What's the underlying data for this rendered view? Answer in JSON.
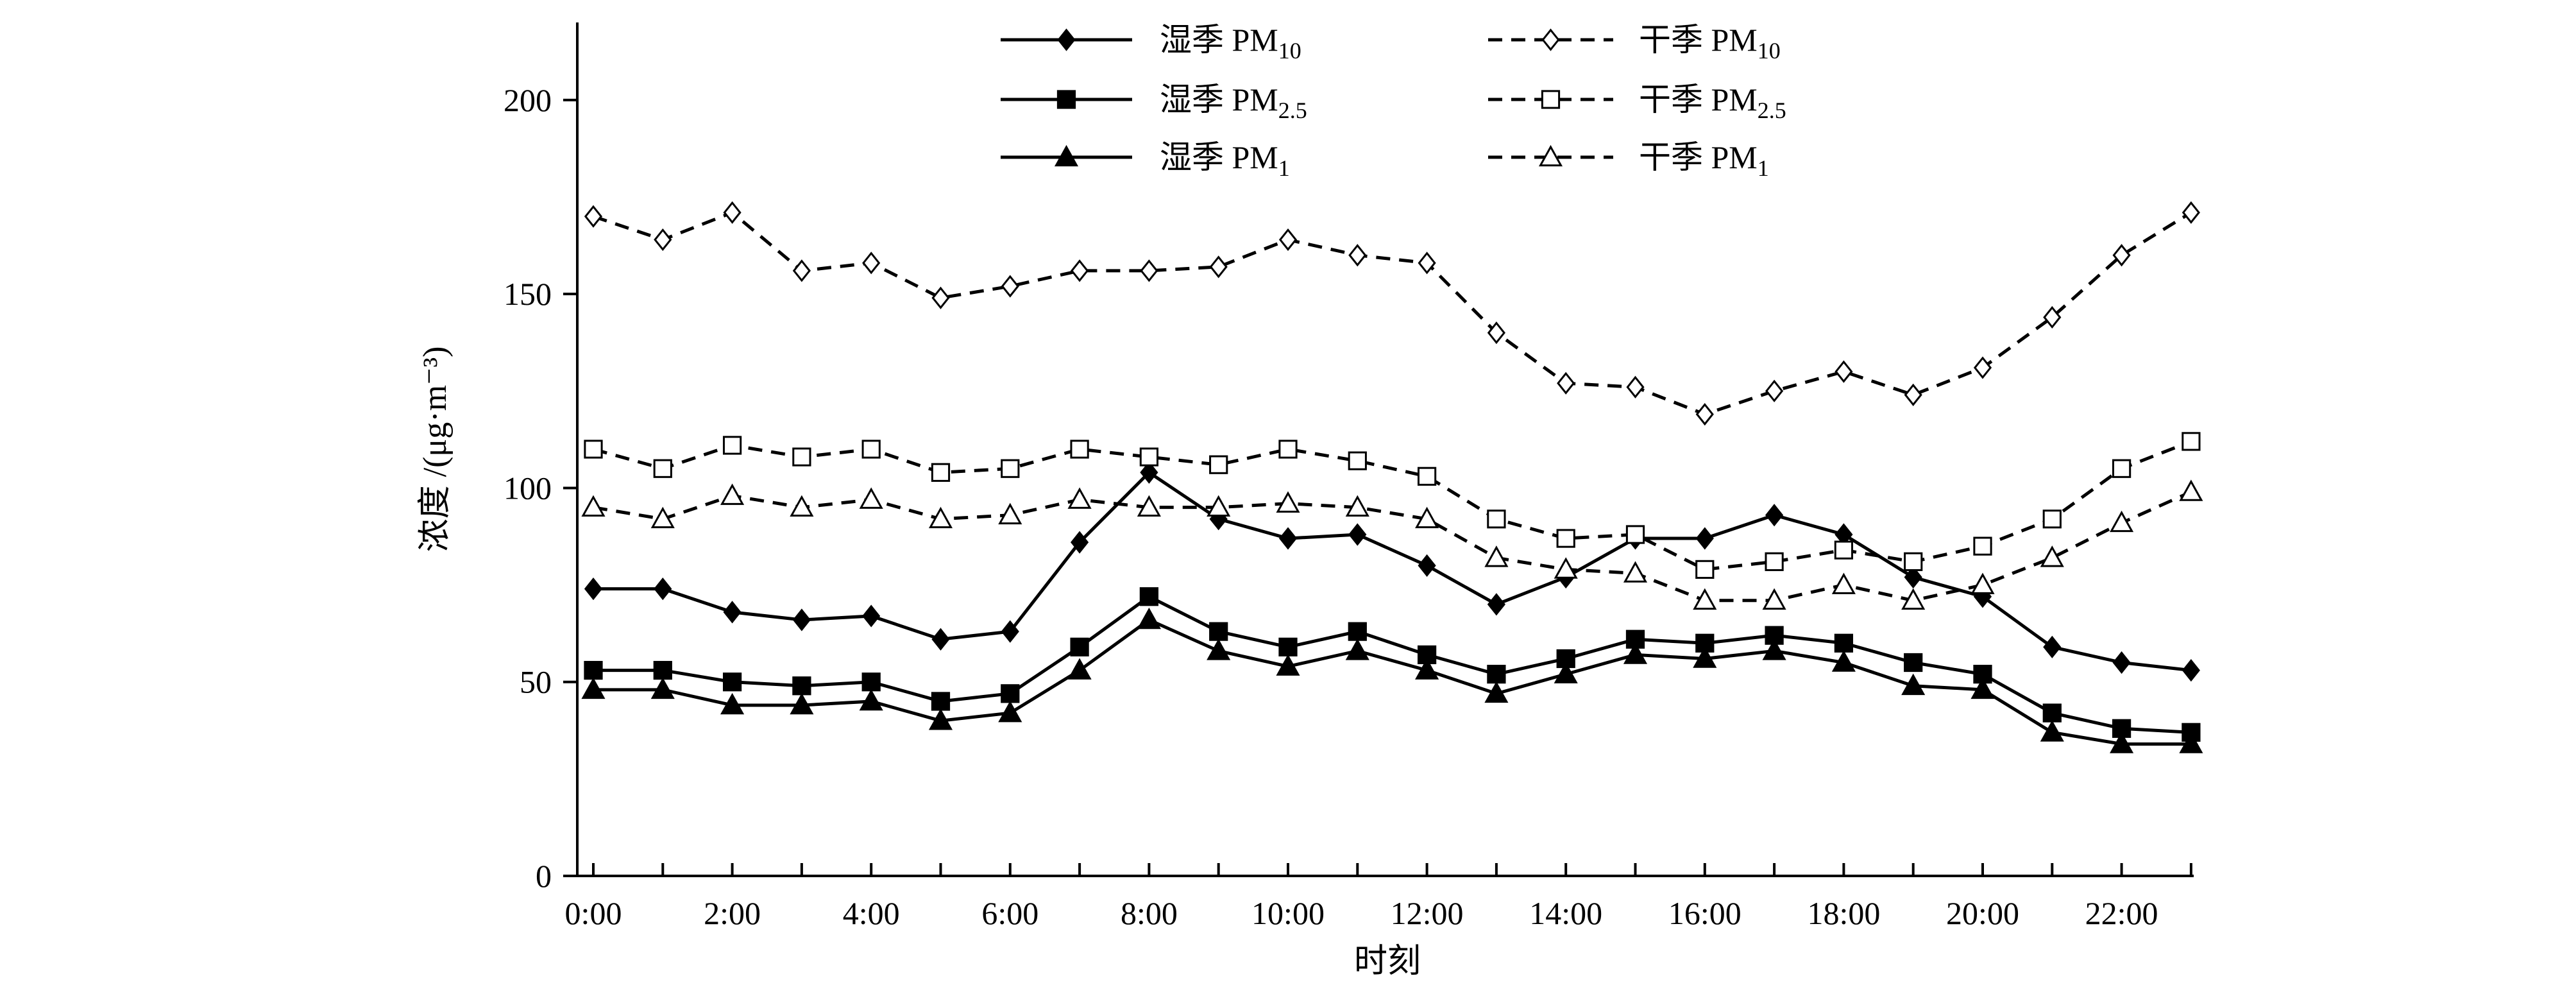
{
  "chart_data": {
    "type": "line",
    "title": "",
    "xlabel": "时刻",
    "ylabel": "浓度 /(μg·m⁻³)",
    "ylim": [
      0,
      220
    ],
    "yticks": [
      0,
      50,
      100,
      150,
      200
    ],
    "x": [
      "0:00",
      "1:00",
      "2:00",
      "3:00",
      "4:00",
      "5:00",
      "6:00",
      "7:00",
      "8:00",
      "9:00",
      "10:00",
      "11:00",
      "12:00",
      "13:00",
      "14:00",
      "15:00",
      "16:00",
      "17:00",
      "18:00",
      "19:00",
      "20:00",
      "21:00",
      "22:00",
      "23:00"
    ],
    "xtick_labels": [
      "0:00",
      "2:00",
      "4:00",
      "6:00",
      "8:00",
      "10:00",
      "12:00",
      "14:00",
      "16:00",
      "18:00",
      "20:00",
      "22:00"
    ],
    "legend_position": "top",
    "series": [
      {
        "name": "湿季 PM10",
        "label_base": "湿季 PM",
        "label_sub": "10",
        "line": "solid",
        "marker": "diamond",
        "filled": true,
        "values": [
          74,
          74,
          68,
          66,
          67,
          61,
          63,
          86,
          104,
          92,
          87,
          88,
          80,
          70,
          77,
          87,
          87,
          93,
          88,
          77,
          72,
          59,
          55,
          53
        ]
      },
      {
        "name": "湿季 PM2.5",
        "label_base": "湿季 PM",
        "label_sub": "2.5",
        "line": "solid",
        "marker": "square",
        "filled": true,
        "values": [
          53,
          53,
          50,
          49,
          50,
          45,
          47,
          59,
          72,
          63,
          59,
          63,
          57,
          52,
          56,
          61,
          60,
          62,
          60,
          55,
          52,
          42,
          38,
          37
        ]
      },
      {
        "name": "湿季 PM1",
        "label_base": "湿季 PM",
        "label_sub": "1",
        "line": "solid",
        "marker": "triangle",
        "filled": true,
        "values": [
          48,
          48,
          44,
          44,
          45,
          40,
          42,
          53,
          66,
          58,
          54,
          58,
          53,
          47,
          52,
          57,
          56,
          58,
          55,
          49,
          48,
          37,
          34,
          34
        ]
      },
      {
        "name": "干季 PM10",
        "label_base": "干季 PM",
        "label_sub": "10",
        "line": "dashed",
        "marker": "diamond",
        "filled": false,
        "values": [
          170,
          164,
          171,
          156,
          158,
          149,
          152,
          156,
          156,
          157,
          164,
          160,
          158,
          140,
          127,
          126,
          119,
          125,
          130,
          124,
          131,
          144,
          160,
          171
        ]
      },
      {
        "name": "干季 PM2.5",
        "label_base": "干季 PM",
        "label_sub": "2.5",
        "line": "dashed",
        "marker": "square",
        "filled": false,
        "values": [
          110,
          105,
          111,
          108,
          110,
          104,
          105,
          110,
          108,
          106,
          110,
          107,
          103,
          92,
          87,
          88,
          79,
          81,
          84,
          81,
          85,
          92,
          105,
          112
        ]
      },
      {
        "name": "干季 PM1",
        "label_base": "干季 PM",
        "label_sub": "1",
        "line": "dashed",
        "marker": "triangle",
        "filled": false,
        "values": [
          95,
          92,
          98,
          95,
          97,
          92,
          93,
          97,
          95,
          95,
          96,
          95,
          92,
          82,
          79,
          78,
          71,
          71,
          75,
          71,
          75,
          82,
          91,
          99
        ]
      }
    ]
  }
}
